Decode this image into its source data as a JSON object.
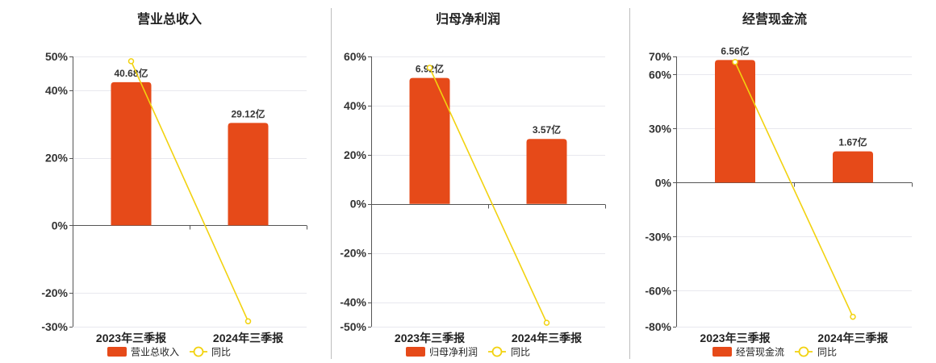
{
  "chart_data": [
    {
      "type": "bar",
      "title": "营业总收入",
      "xlabel": "",
      "ylabel": "",
      "categories": [
        "2023年三季报",
        "2024年三季报"
      ],
      "series": [
        {
          "name": "营业总收入",
          "type": "bar",
          "values": [
            40.68,
            29.12
          ],
          "labels": [
            "40.68亿",
            "29.12亿"
          ],
          "color": "#E64A19"
        },
        {
          "name": "同比",
          "type": "line",
          "values": [
            48.6,
            -28.4
          ],
          "color": "#F2D20F"
        }
      ],
      "ylim": [
        -30,
        50
      ],
      "yticks": [
        50,
        40,
        20,
        0,
        -20,
        -30
      ],
      "ytick_labels": [
        "50%",
        "40%",
        "20%",
        "0%",
        "-20%",
        "-30%"
      ],
      "grid": true,
      "legend": "bottom"
    },
    {
      "type": "bar",
      "title": "归母净利润",
      "xlabel": "",
      "ylabel": "",
      "categories": [
        "2023年三季报",
        "2024年三季报"
      ],
      "series": [
        {
          "name": "归母净利润",
          "type": "bar",
          "values": [
            6.92,
            3.57
          ],
          "labels": [
            "6.92亿",
            "3.57亿"
          ],
          "color": "#E64A19"
        },
        {
          "name": "同比",
          "type": "line",
          "values": [
            55.4,
            -48.4
          ],
          "color": "#F2D20F"
        }
      ],
      "ylim": [
        -50,
        60
      ],
      "yticks": [
        60,
        40,
        20,
        0,
        -20,
        -40,
        -50
      ],
      "ytick_labels": [
        "60%",
        "40%",
        "20%",
        "0%",
        "-20%",
        "-40%",
        "-50%"
      ],
      "grid": true,
      "legend": "bottom"
    },
    {
      "type": "bar",
      "title": "经营现金流",
      "xlabel": "",
      "ylabel": "",
      "categories": [
        "2023年三季报",
        "2024年三季报"
      ],
      "series": [
        {
          "name": "经营现金流",
          "type": "bar",
          "values": [
            6.56,
            1.67
          ],
          "labels": [
            "6.56亿",
            "1.67亿"
          ],
          "color": "#E64A19"
        },
        {
          "name": "同比",
          "type": "line",
          "values": [
            66.9,
            -74.5
          ],
          "color": "#F2D20F"
        }
      ],
      "ylim": [
        -80,
        70
      ],
      "yticks": [
        70,
        60,
        30,
        0,
        -30,
        -60,
        -80
      ],
      "ytick_labels": [
        "70%",
        "60%",
        "30%",
        "0%",
        "-30%",
        "-60%",
        "-80%"
      ],
      "grid": true,
      "legend": "bottom"
    }
  ]
}
